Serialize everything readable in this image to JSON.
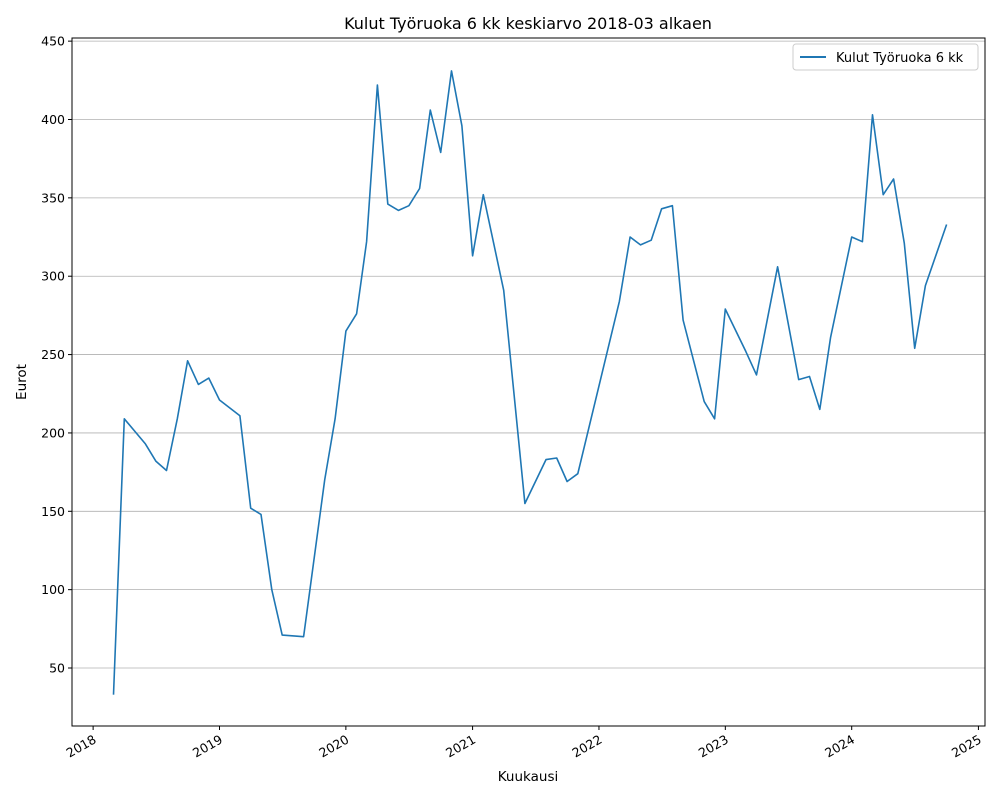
{
  "chart_data": {
    "type": "line",
    "title": "Kulut Työruoka 6 kk keskiarvo 2018-03 alkaen",
    "xlabel": "Kuukausi",
    "ylabel": "Eurot",
    "xlim": [
      "2017-11-01",
      "2025-01-20"
    ],
    "ylim": [
      13,
      452
    ],
    "x_ticks": [
      "2018",
      "2019",
      "2020",
      "2021",
      "2022",
      "2023",
      "2024",
      "2025"
    ],
    "y_ticks": [
      50,
      100,
      150,
      200,
      250,
      300,
      350,
      400,
      450
    ],
    "grid": "horizontal",
    "legend_position": "top-right",
    "colors": {
      "line": "#1f77b4",
      "grid": "#b0b0b0"
    },
    "series": [
      {
        "name": "Kulut Työruoka 6 kk",
        "points": [
          [
            "2018-03-01",
            33
          ],
          [
            "2018-04-01",
            209
          ],
          [
            "2018-06-01",
            193
          ],
          [
            "2018-07-01",
            182
          ],
          [
            "2018-08-01",
            176
          ],
          [
            "2018-09-01",
            209
          ],
          [
            "2018-10-01",
            246
          ],
          [
            "2018-11-01",
            231
          ],
          [
            "2018-12-01",
            235
          ],
          [
            "2019-01-01",
            221
          ],
          [
            "2019-03-01",
            211
          ],
          [
            "2019-04-01",
            152
          ],
          [
            "2019-05-01",
            148
          ],
          [
            "2019-06-01",
            100
          ],
          [
            "2019-07-01",
            71
          ],
          [
            "2019-09-01",
            70
          ],
          [
            "2019-11-01",
            170
          ],
          [
            "2019-12-01",
            209
          ],
          [
            "2020-01-01",
            265
          ],
          [
            "2020-02-01",
            276
          ],
          [
            "2020-03-01",
            322
          ],
          [
            "2020-04-01",
            422
          ],
          [
            "2020-05-01",
            346
          ],
          [
            "2020-06-01",
            342
          ],
          [
            "2020-07-01",
            345
          ],
          [
            "2020-08-01",
            356
          ],
          [
            "2020-09-01",
            406
          ],
          [
            "2020-10-01",
            379
          ],
          [
            "2020-11-01",
            431
          ],
          [
            "2020-12-01",
            396
          ],
          [
            "2021-01-01",
            313
          ],
          [
            "2021-02-01",
            352
          ],
          [
            "2021-04-01",
            291
          ],
          [
            "2021-06-01",
            155
          ],
          [
            "2021-08-01",
            183
          ],
          [
            "2021-09-01",
            184
          ],
          [
            "2021-10-01",
            169
          ],
          [
            "2021-11-01",
            174
          ],
          [
            "2022-03-01",
            284
          ],
          [
            "2022-04-01",
            325
          ],
          [
            "2022-05-01",
            320
          ],
          [
            "2022-06-01",
            323
          ],
          [
            "2022-07-01",
            343
          ],
          [
            "2022-08-01",
            345
          ],
          [
            "2022-09-01",
            272
          ],
          [
            "2022-11-01",
            220
          ],
          [
            "2022-12-01",
            209
          ],
          [
            "2023-01-01",
            279
          ],
          [
            "2023-03-01",
            252
          ],
          [
            "2023-04-01",
            237
          ],
          [
            "2023-06-01",
            306
          ],
          [
            "2023-08-01",
            234
          ],
          [
            "2023-09-01",
            236
          ],
          [
            "2023-10-01",
            215
          ],
          [
            "2023-11-01",
            261
          ],
          [
            "2024-01-01",
            325
          ],
          [
            "2024-02-01",
            322
          ],
          [
            "2024-03-01",
            403
          ],
          [
            "2024-04-01",
            352
          ],
          [
            "2024-05-01",
            362
          ],
          [
            "2024-06-01",
            321
          ],
          [
            "2024-07-01",
            254
          ],
          [
            "2024-08-01",
            294
          ],
          [
            "2024-10-01",
            333
          ]
        ]
      }
    ]
  }
}
